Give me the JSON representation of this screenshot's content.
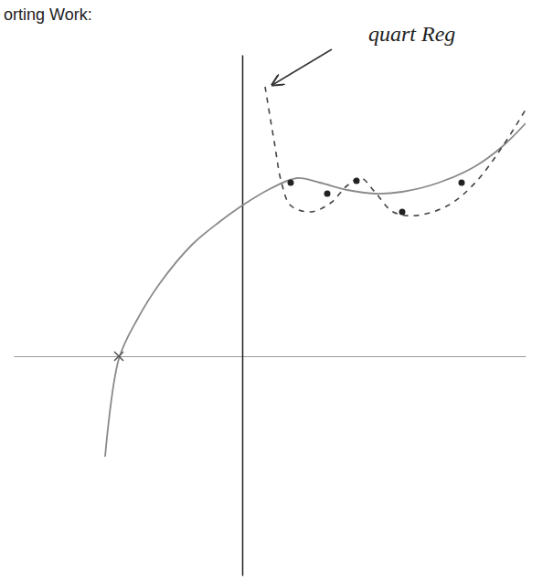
{
  "chart_data": {
    "type": "line",
    "title": "orting Work:",
    "annotation": "quart Reg",
    "xlim": [
      -25,
      31
    ],
    "ylim": [
      -24,
      33
    ],
    "tick_labels": false,
    "grid": false,
    "series": [
      {
        "type": "line",
        "color": "#8a8a8a",
        "line_style": "solid",
        "marker": "none",
        "x": [
          -15,
          -13.5,
          -11.5,
          -9,
          -5.5,
          -2.5,
          0,
          3,
          6,
          8.5,
          11.5,
          14.5,
          17.5,
          21.5,
          25.5,
          28.5,
          31
        ],
        "values": [
          -11,
          -0.3,
          4,
          8,
          12.2,
          14.7,
          16.5,
          18.3,
          19.5,
          19,
          18.2,
          17.8,
          18,
          19,
          20.8,
          23,
          25.5
        ]
      },
      {
        "type": "line",
        "color": "#444444",
        "line_style": "dashed",
        "marker": "none",
        "x": [
          2.5,
          3.5,
          4.3,
          5.3,
          7.5,
          9.7,
          11.5,
          13,
          14.5,
          16.5,
          19,
          22.5,
          25.5,
          28.5,
          31
        ],
        "values": [
          29.5,
          23.5,
          19,
          16.5,
          15.8,
          16.8,
          18.7,
          19.5,
          18,
          15.8,
          15.4,
          16.5,
          19,
          23,
          27
        ]
      },
      {
        "type": "scatter",
        "color": "#222222",
        "marker": "circle",
        "x": [
          5.3,
          9.3,
          12.5,
          17.5,
          24
        ],
        "values": [
          19,
          17.8,
          19.2,
          15.8,
          19
        ]
      },
      {
        "type": "scatter",
        "color": "#555555",
        "marker": "x",
        "x": [
          -13.5
        ],
        "values": [
          0
        ]
      }
    ]
  }
}
